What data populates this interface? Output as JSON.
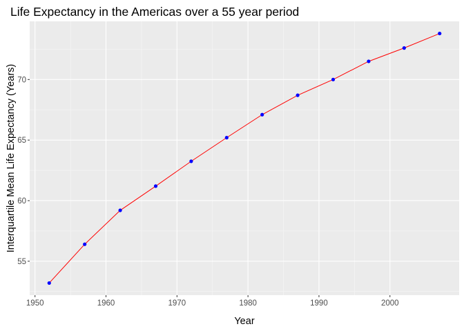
{
  "chart_data": {
    "type": "line",
    "title": "Life Expectancy in the Americas over a 55 year period",
    "xlabel": "Year",
    "ylabel": "Interquartile Mean Life Expectancy (Years)",
    "xlim": [
      1949.25,
      2009.75
    ],
    "ylim": [
      52.2,
      74.8
    ],
    "x_ticks": [
      1950,
      1960,
      1970,
      1980,
      1990,
      2000
    ],
    "y_ticks": [
      55,
      60,
      65,
      70
    ],
    "grid": true,
    "legend": "none",
    "series": [
      {
        "line_color": "#ff0000",
        "point_color": "#0000ff",
        "x": [
          1952,
          1957,
          1962,
          1967,
          1972,
          1977,
          1982,
          1987,
          1992,
          1997,
          2002,
          2007
        ],
        "y": [
          53.2,
          56.4,
          59.2,
          61.2,
          63.25,
          65.2,
          67.1,
          68.7,
          70.0,
          71.5,
          72.6,
          73.8
        ]
      }
    ]
  }
}
